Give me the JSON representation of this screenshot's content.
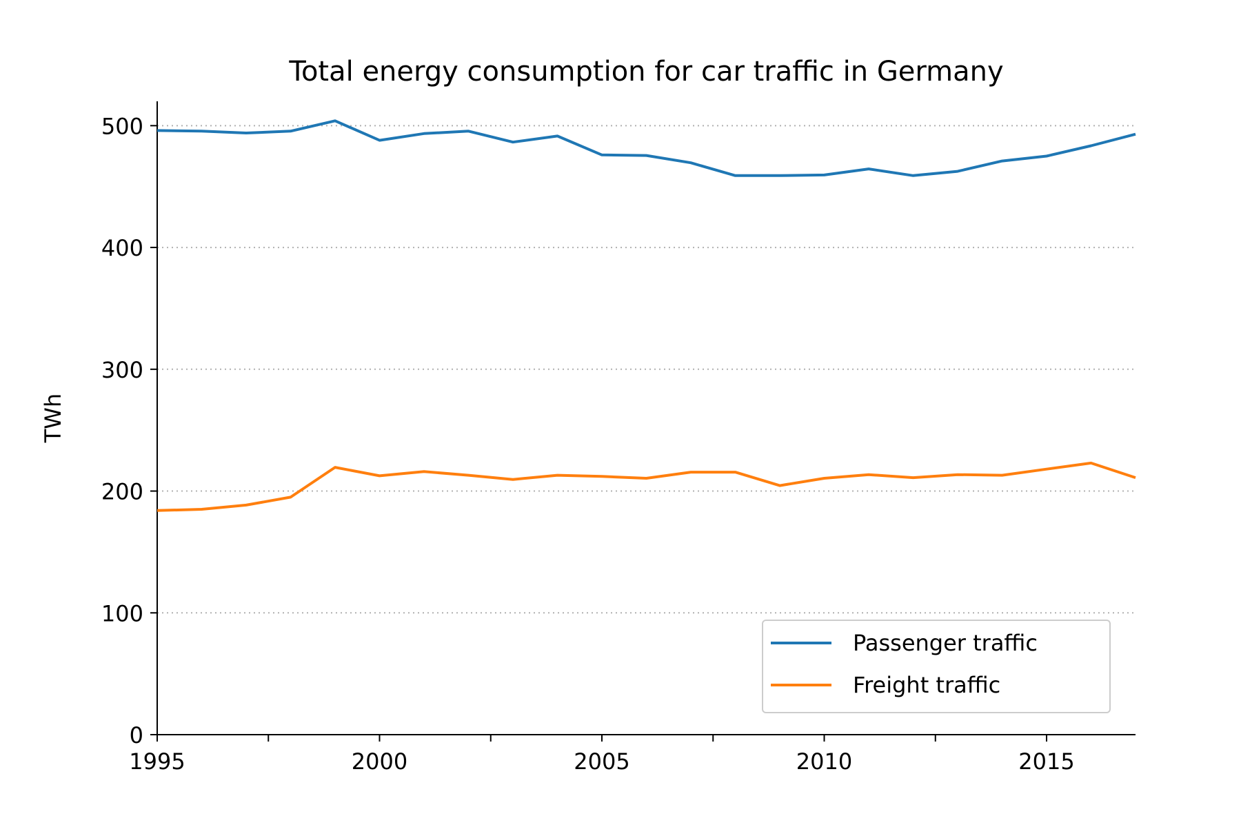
{
  "chart_data": {
    "type": "line",
    "title": "Total energy consumption for car traffic in Germany",
    "xlabel": "",
    "ylabel": "TWh",
    "xlim": [
      1995,
      2017
    ],
    "ylim": [
      0,
      520
    ],
    "x_ticks": [
      1995,
      2000,
      2005,
      2010,
      2015
    ],
    "x_minor_ticks": [
      1997.5,
      2002.5,
      2007.5,
      2012.5
    ],
    "y_ticks": [
      0,
      100,
      200,
      300,
      400,
      500
    ],
    "grid": "y-dotted",
    "legend_position": "lower-right",
    "x": [
      1995,
      1996,
      1997,
      1998,
      1999,
      2000,
      2001,
      2002,
      2003,
      2004,
      2005,
      2006,
      2007,
      2008,
      2009,
      2010,
      2011,
      2012,
      2013,
      2014,
      2015,
      2016,
      2017
    ],
    "series": [
      {
        "name": "Passenger traffic",
        "color": "#1f77b4",
        "values": [
          496,
          495.5,
          494,
          495.5,
          504,
          488,
          493.5,
          495.5,
          486.5,
          491.5,
          476,
          475.5,
          469.5,
          459,
          459,
          459.5,
          464.5,
          459,
          462.5,
          471,
          475,
          483.5,
          493
        ]
      },
      {
        "name": "Freight traffic",
        "color": "#ff7f0e",
        "values": [
          184,
          185,
          188.5,
          195,
          219.5,
          212.5,
          216,
          213,
          209.5,
          213,
          212,
          210.5,
          215.5,
          215.5,
          204.5,
          210.5,
          213.5,
          211,
          213.5,
          213,
          218,
          223,
          211
        ]
      }
    ]
  }
}
